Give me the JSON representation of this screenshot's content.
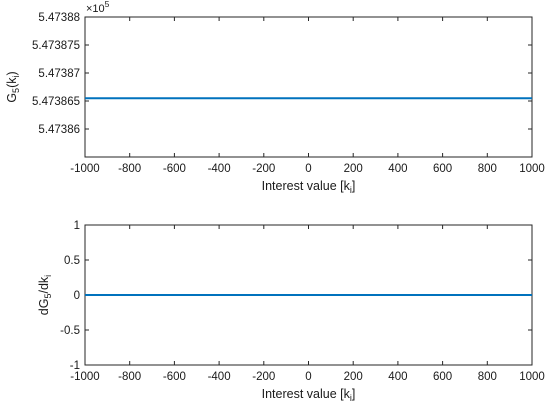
{
  "chart_data": [
    {
      "type": "line",
      "ylabel_main": "G",
      "ylabel_sub": "5",
      "ylabel_paren_open": "(k",
      "ylabel_paren_sub": "i",
      "ylabel_paren_close": ")",
      "xlabel_main": "Interest value [k",
      "xlabel_sub": "i",
      "xlabel_close": "]",
      "exponent_base": "×10",
      "exponent_power": "5",
      "xlim": [
        -1000,
        1000
      ],
      "ylim": [
        5.473855,
        5.47388
      ],
      "x_ticks": [
        -1000,
        -800,
        -600,
        -400,
        -200,
        0,
        200,
        400,
        600,
        800,
        1000
      ],
      "y_tick_values": [
        5.47386,
        5.473865,
        5.47387,
        5.473875,
        5.47388
      ],
      "y_tick_labels": [
        "5.47386",
        "5.473865",
        "5.47387",
        "5.473875",
        "5.47388"
      ],
      "series": [
        {
          "color": "#0072bd",
          "x": [
            -1000,
            1000
          ],
          "y": [
            5.4738655,
            5.4738655
          ]
        }
      ]
    },
    {
      "type": "line",
      "ylabel_prefix": "dG",
      "ylabel_sub": "5",
      "ylabel_mid": "/dk",
      "ylabel_sub2": "i",
      "xlabel_main": "Interest value [k",
      "xlabel_sub": "i",
      "xlabel_close": "]",
      "xlim": [
        -1000,
        1000
      ],
      "ylim": [
        -1,
        1
      ],
      "x_ticks": [
        -1000,
        -800,
        -600,
        -400,
        -200,
        0,
        200,
        400,
        600,
        800,
        1000
      ],
      "y_tick_values": [
        -1,
        -0.5,
        0,
        0.5,
        1
      ],
      "y_tick_labels": [
        "-1",
        "-0.5",
        "0",
        "0.5",
        "1"
      ],
      "series": [
        {
          "color": "#0072bd",
          "x": [
            -1000,
            1000
          ],
          "y": [
            0,
            0
          ]
        }
      ]
    }
  ]
}
